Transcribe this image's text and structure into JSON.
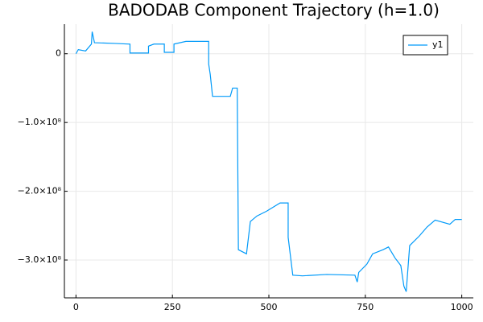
{
  "chart_data": {
    "type": "line",
    "title": "BADODAB Component Trajectory (h=1.0)",
    "xlim": [
      -30,
      1030
    ],
    "xticks": [
      0,
      250,
      500,
      750,
      1000
    ],
    "ylim": [
      -355000000,
      43000000
    ],
    "yticks": [
      0,
      {
        "value": -100000000,
        "label": "−1.0×10⁸"
      },
      {
        "value": -200000000,
        "label": "−2.0×10⁸"
      },
      {
        "value": -300000000,
        "label": "−3.0×10⁸"
      }
    ],
    "grid": true,
    "legend": "top-right",
    "series": [
      {
        "name": "y1",
        "color": "#009af9",
        "x": [
          0,
          6,
          25,
          40,
          42,
          48,
          100,
          140,
          140,
          188,
          188,
          202,
          229,
          229,
          254,
          254,
          285,
          344,
          344,
          348,
          354,
          400,
          406,
          418,
          421,
          442,
          452,
          469,
          494,
          529,
          550,
          550,
          562,
          587,
          650,
          723,
          729,
          733,
          754,
          769,
          796,
          810,
          827,
          842,
          850,
          856,
          865,
          890,
          910,
          931,
          969,
          983,
          1000
        ],
        "values": [
          0,
          6000000,
          4000000,
          14000000,
          32000000,
          16000000,
          15000000,
          14000000,
          1000000,
          1000000,
          11000000,
          14000000,
          14000000,
          2000000,
          2000000,
          14000000,
          18000000,
          18000000,
          -15000000,
          -30000000,
          -62000000,
          -62000000,
          -50000000,
          -50000000,
          -285000000,
          -291000000,
          -244000000,
          -236000000,
          -229000000,
          -217000000,
          -217000000,
          -267000000,
          -322000000,
          -323000000,
          -321000000,
          -322000000,
          -332000000,
          -318000000,
          -306000000,
          -291000000,
          -285000000,
          -281000000,
          -297000000,
          -308000000,
          -338000000,
          -346000000,
          -279000000,
          -265000000,
          -252000000,
          -242000000,
          -248000000,
          -241000000,
          -241000000
        ]
      }
    ]
  }
}
